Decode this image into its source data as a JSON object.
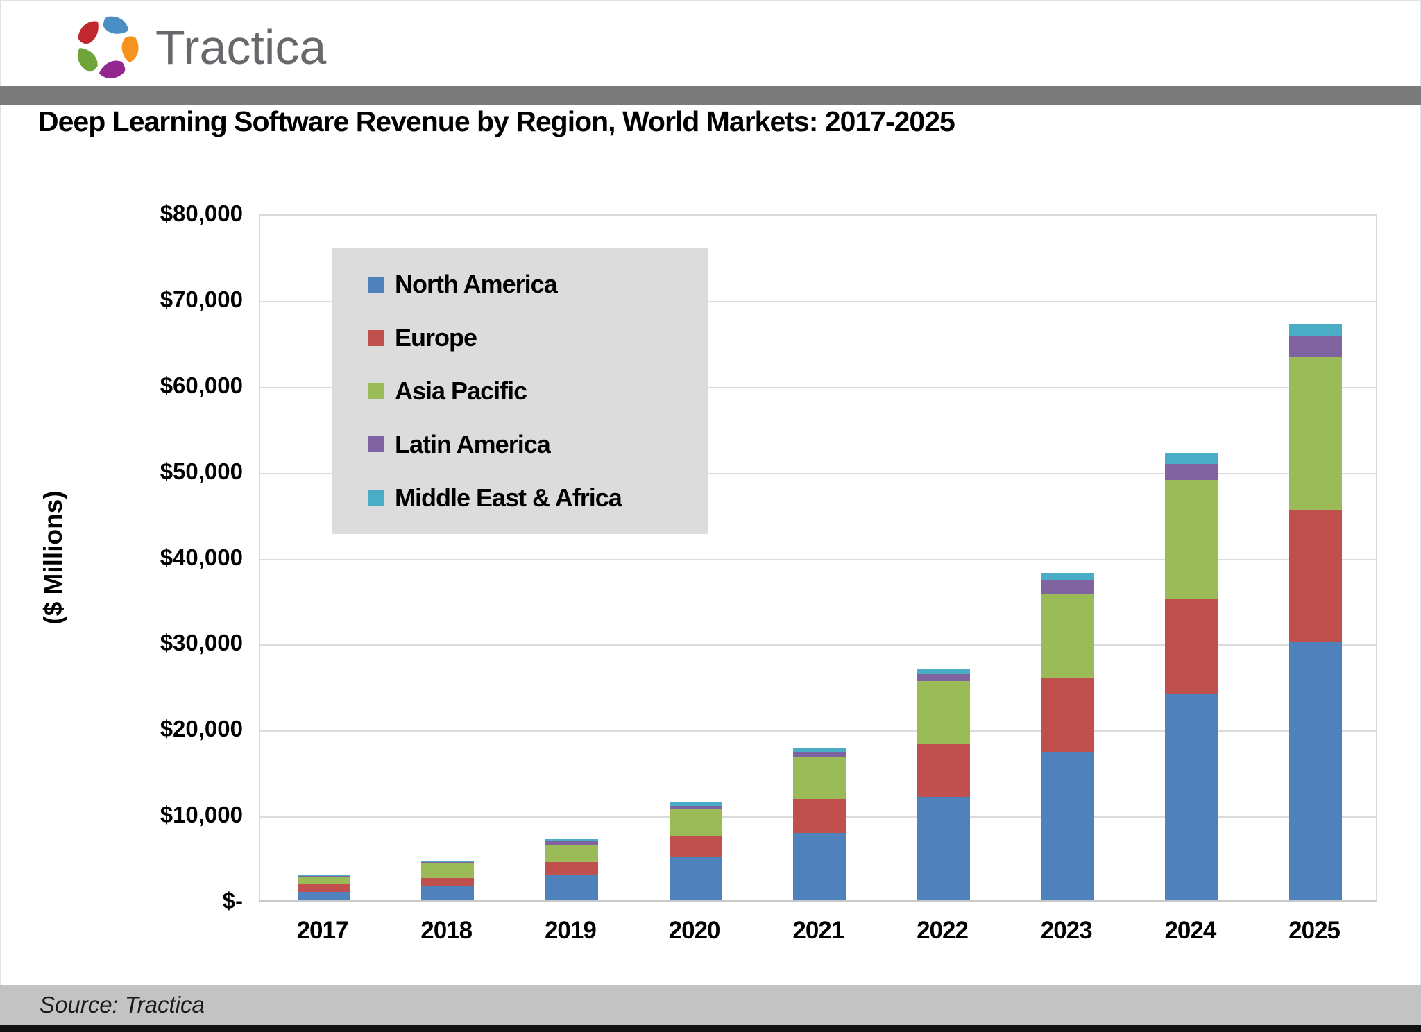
{
  "header": {
    "brand": "Tractica",
    "logo_petal_colors": [
      "#4a8fc3",
      "#f6921e",
      "#93278f",
      "#6fa43a",
      "#c1272d"
    ],
    "logo_text_color": "#66686b"
  },
  "title": "Deep Learning Software Revenue by Region, World Markets: 2017-2025",
  "footer": {
    "source": "Source: Tractica"
  },
  "colors": {
    "header_band": "#7b7b7b",
    "footer_bar": "#c3c3c3",
    "bottom_strip": "#111111",
    "legend_background": "#dcdcdc",
    "gridline": "#dcdcdc"
  },
  "chart_data": {
    "type": "bar",
    "stacked": true,
    "title": "Deep Learning Software Revenue by Region, World Markets: 2017-2025",
    "xlabel": "",
    "ylabel": "($ Millions)",
    "ylim": [
      0,
      80000
    ],
    "ytick_interval": 10000,
    "ytick_labels": [
      "$80,000",
      "$70,000",
      "$60,000",
      "$50,000",
      "$40,000",
      "$30,000",
      "$20,000",
      "$10,000",
      "$-"
    ],
    "grid": true,
    "legend_position": "upper-left-inside",
    "categories": [
      "2017",
      "2018",
      "2019",
      "2020",
      "2021",
      "2022",
      "2023",
      "2024",
      "2025"
    ],
    "series": [
      {
        "name": "North America",
        "color": "#4F81BD",
        "values": [
          950,
          1700,
          3000,
          5100,
          7800,
          12000,
          17300,
          24000,
          30000
        ]
      },
      {
        "name": "Europe",
        "color": "#C0504D",
        "values": [
          900,
          900,
          1450,
          2400,
          4000,
          6200,
          8600,
          11000,
          15400
        ]
      },
      {
        "name": "Asia Pacific",
        "color": "#9BBB59",
        "values": [
          850,
          1650,
          2050,
          3100,
          4900,
          7300,
          9800,
          13900,
          17800
        ]
      },
      {
        "name": "Latin America",
        "color": "#8064A2",
        "values": [
          150,
          200,
          400,
          400,
          550,
          800,
          1600,
          1850,
          2400
        ]
      },
      {
        "name": "Middle East & Africa",
        "color": "#4BACC6",
        "values": [
          100,
          150,
          300,
          500,
          450,
          650,
          800,
          1350,
          1500
        ]
      }
    ],
    "totals_millions": [
      2950,
      4600,
      7200,
      11500,
      17700,
      26950,
      38100,
      52100,
      67100
    ]
  }
}
